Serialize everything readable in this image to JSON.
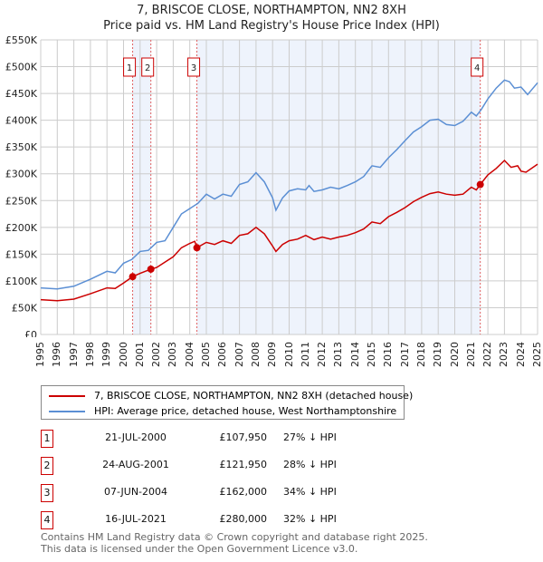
{
  "title_line1": "7, BRISCOE CLOSE, NORTHAMPTON, NN2 8XH",
  "title_line2": "Price paid vs. HM Land Registry's House Price Index (HPI)",
  "legend": {
    "property": "7, BRISCOE CLOSE, NORTHAMPTON, NN2 8XH (detached house)",
    "hpi": "HPI: Average price, detached house, West Northamptonshire"
  },
  "colors": {
    "property": "#cc0000",
    "hpi": "#5b8fd4",
    "shade": "#eef3fc"
  },
  "sales": [
    {
      "num": "1",
      "date": "21-JUL-2000",
      "price": "£107,950",
      "pct": "27% ↓ HPI"
    },
    {
      "num": "2",
      "date": "24-AUG-2001",
      "price": "£121,950",
      "pct": "28% ↓ HPI"
    },
    {
      "num": "3",
      "date": "07-JUN-2004",
      "price": "£162,000",
      "pct": "34% ↓ HPI"
    },
    {
      "num": "4",
      "date": "16-JUL-2021",
      "price": "£280,000",
      "pct": "32% ↓ HPI"
    }
  ],
  "footer": {
    "line1": "Contains HM Land Registry data © Crown copyright and database right 2025.",
    "line2": "This data is licensed under the Open Government Licence v3.0."
  },
  "chart_data": {
    "type": "line",
    "xlim": [
      1995,
      2025
    ],
    "ylim": [
      0,
      550000
    ],
    "x_ticks": [
      "1995",
      "1996",
      "1997",
      "1998",
      "1999",
      "2000",
      "2001",
      "2002",
      "2003",
      "2004",
      "2005",
      "2006",
      "2007",
      "2008",
      "2009",
      "2010",
      "2011",
      "2012",
      "2013",
      "2014",
      "2015",
      "2016",
      "2017",
      "2018",
      "2019",
      "2020",
      "2021",
      "2022",
      "2023",
      "2024",
      "2025"
    ],
    "y_ticks": [
      {
        "v": 0,
        "label": "£0"
      },
      {
        "v": 50000,
        "label": "£50K"
      },
      {
        "v": 100000,
        "label": "£100K"
      },
      {
        "v": 150000,
        "label": "£150K"
      },
      {
        "v": 200000,
        "label": "£200K"
      },
      {
        "v": 250000,
        "label": "£250K"
      },
      {
        "v": 300000,
        "label": "£300K"
      },
      {
        "v": 350000,
        "label": "£350K"
      },
      {
        "v": 400000,
        "label": "£400K"
      },
      {
        "v": 450000,
        "label": "£450K"
      },
      {
        "v": 500000,
        "label": "£500K"
      },
      {
        "v": 550000,
        "label": "£550K"
      }
    ],
    "sale_points": [
      {
        "label": "1",
        "x": 2000.55,
        "y": 107950
      },
      {
        "label": "2",
        "x": 2001.65,
        "y": 121950
      },
      {
        "label": "3",
        "x": 2004.43,
        "y": 162000
      },
      {
        "label": "4",
        "x": 2021.54,
        "y": 280000
      }
    ],
    "series": [
      {
        "name": "HPI: Average price, detached house, West Northamptonshire",
        "key": "hpi",
        "x": [
          1995,
          1996,
          1997,
          1998,
          1999,
          1999.5,
          2000,
          2000.5,
          2001,
          2001.5,
          2002,
          2002.5,
          2003,
          2003.5,
          2004,
          2004.5,
          2005,
          2005.5,
          2006,
          2006.5,
          2007,
          2007.5,
          2008,
          2008.5,
          2009,
          2009.2,
          2009.6,
          2010,
          2010.5,
          2011,
          2011.2,
          2011.5,
          2012,
          2012.5,
          2013,
          2013.5,
          2014,
          2014.5,
          2015,
          2015.5,
          2016,
          2016.5,
          2017,
          2017.5,
          2018,
          2018.5,
          2019,
          2019.5,
          2020,
          2020.5,
          2021,
          2021.3,
          2021.6,
          2022,
          2022.5,
          2023,
          2023.3,
          2023.6,
          2024,
          2024.4,
          2025
        ],
        "y": [
          87000,
          85000,
          90000,
          103000,
          118000,
          115000,
          133000,
          140000,
          155000,
          157000,
          172000,
          175000,
          200000,
          225000,
          235000,
          245000,
          262000,
          253000,
          262000,
          258000,
          280000,
          285000,
          302000,
          285000,
          255000,
          232000,
          255000,
          268000,
          272000,
          270000,
          278000,
          267000,
          270000,
          275000,
          272000,
          278000,
          285000,
          295000,
          315000,
          312000,
          330000,
          345000,
          362000,
          378000,
          388000,
          400000,
          402000,
          392000,
          390000,
          398000,
          415000,
          408000,
          420000,
          440000,
          460000,
          475000,
          472000,
          460000,
          462000,
          448000,
          470000
        ]
      },
      {
        "name": "7, BRISCOE CLOSE, NORTHAMPTON, NN2 8XH (detached house)",
        "key": "property",
        "x": [
          1995,
          1996,
          1997,
          1998,
          1999,
          1999.5,
          2000,
          2000.55,
          2001,
          2001.65,
          2002,
          2003,
          2003.5,
          2004,
          2004.3,
          2004.43,
          2005,
          2005.5,
          2006,
          2006.5,
          2007,
          2007.5,
          2008,
          2008.5,
          2009,
          2009.2,
          2009.6,
          2010,
          2010.5,
          2011,
          2011.5,
          2012,
          2012.5,
          2013,
          2013.5,
          2014,
          2014.5,
          2015,
          2015.5,
          2016,
          2016.5,
          2017,
          2017.5,
          2018,
          2018.5,
          2019,
          2019.5,
          2020,
          2020.5,
          2021,
          2021.3,
          2021.54,
          2022,
          2022.5,
          2023,
          2023.4,
          2023.8,
          2024,
          2024.3,
          2025
        ],
        "y": [
          65000,
          63000,
          66000,
          76000,
          87000,
          86000,
          96000,
          107950,
          114000,
          121950,
          125000,
          145000,
          162000,
          170000,
          174000,
          162000,
          172000,
          168000,
          175000,
          170000,
          185000,
          188000,
          200000,
          188000,
          165000,
          155000,
          168000,
          175000,
          178000,
          185000,
          177000,
          182000,
          178000,
          182000,
          185000,
          190000,
          197000,
          210000,
          207000,
          220000,
          228000,
          237000,
          248000,
          256000,
          263000,
          266000,
          262000,
          260000,
          262000,
          275000,
          270000,
          280000,
          298000,
          310000,
          325000,
          312000,
          315000,
          305000,
          303000,
          318000
        ]
      }
    ]
  }
}
